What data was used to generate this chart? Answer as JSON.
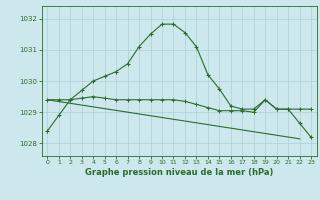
{
  "title": "Graphe pression niveau de la mer (hPa)",
  "bg_color": "#cce8ed",
  "grid_color": "#aed4da",
  "line_color": "#2d6b2d",
  "x_ticks": [
    0,
    1,
    2,
    3,
    4,
    5,
    6,
    7,
    8,
    9,
    10,
    11,
    12,
    13,
    14,
    15,
    16,
    17,
    18,
    19,
    20,
    21,
    22,
    23
  ],
  "y_ticks": [
    1028,
    1029,
    1030,
    1031,
    1032
  ],
  "ylim": [
    1027.6,
    1032.4
  ],
  "xlim": [
    -0.5,
    23.5
  ],
  "series1": [
    1028.4,
    1028.9,
    1029.4,
    1029.7,
    1030.0,
    1030.15,
    1030.3,
    1030.55,
    1031.1,
    1031.5,
    1031.82,
    1031.82,
    1031.55,
    1031.1,
    1030.2,
    1029.75,
    1029.2,
    1029.1,
    1029.1,
    1029.4,
    1029.1,
    1029.1,
    1028.65,
    1028.2
  ],
  "series2": [
    1029.4,
    1029.4,
    1029.4,
    1029.45,
    1029.5,
    1029.45,
    1029.4,
    1029.4,
    1029.4,
    1029.4,
    1029.4,
    1029.4,
    1029.35,
    1029.25,
    1029.15,
    1029.05,
    1029.05,
    1029.05,
    1029.0,
    1029.4,
    1029.1,
    1029.1,
    1029.1,
    1029.1
  ],
  "series3_x": [
    0,
    22
  ],
  "series3_y": [
    1029.4,
    1028.15
  ]
}
